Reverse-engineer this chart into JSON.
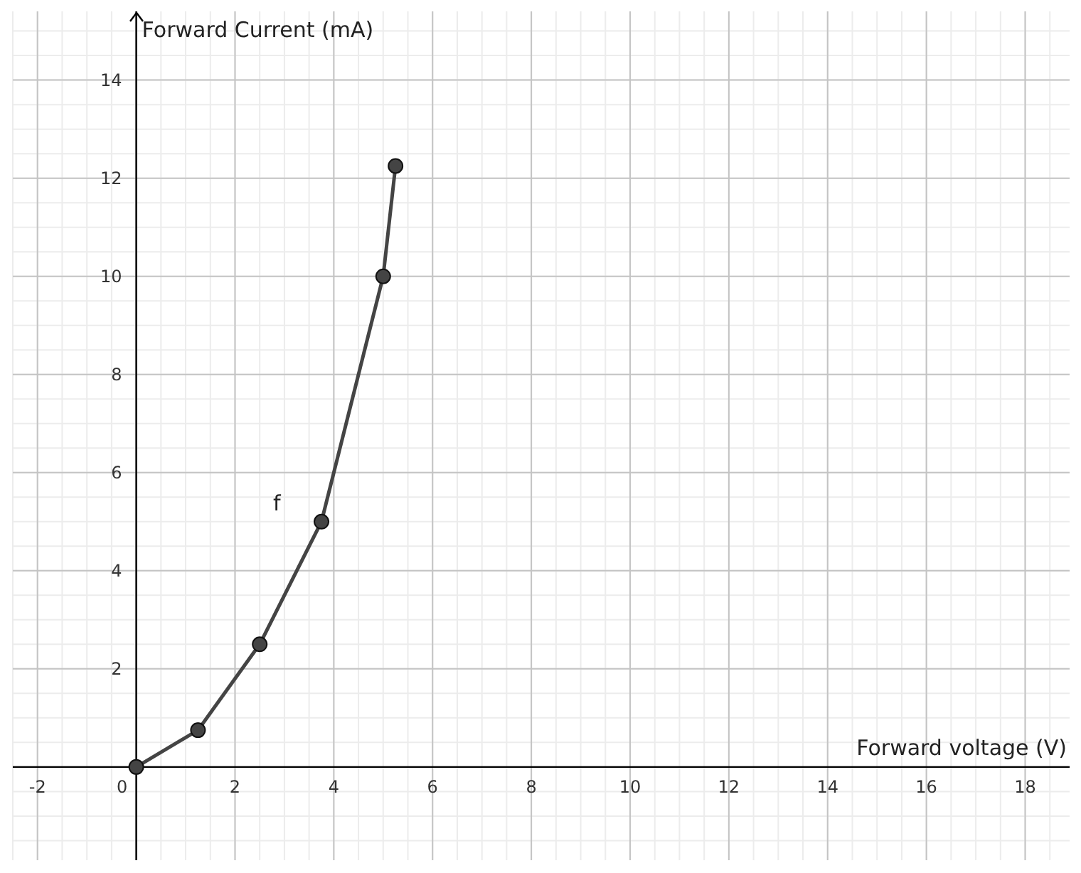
{
  "chart_data": {
    "type": "line",
    "xlabel": "Forward voltage (V)",
    "ylabel": "Forward Current (mA)",
    "x": [
      0,
      1.25,
      2.5,
      3.75,
      5,
      5.25
    ],
    "series": [
      {
        "color": "#444444",
        "values": [
          0,
          0.75,
          2.5,
          5,
          10,
          12.25
        ]
      }
    ],
    "xlim": [
      -2.5,
      18.9
    ],
    "ylim": [
      -1.9,
      15.4
    ],
    "xticks": [
      -2,
      0,
      2,
      4,
      6,
      8,
      10,
      12,
      14,
      16,
      18
    ],
    "yticks": [
      2,
      4,
      6,
      8,
      10,
      12,
      14
    ],
    "grid": true,
    "marker": "circle",
    "line_style": "solid",
    "annotations": [
      "f"
    ]
  }
}
